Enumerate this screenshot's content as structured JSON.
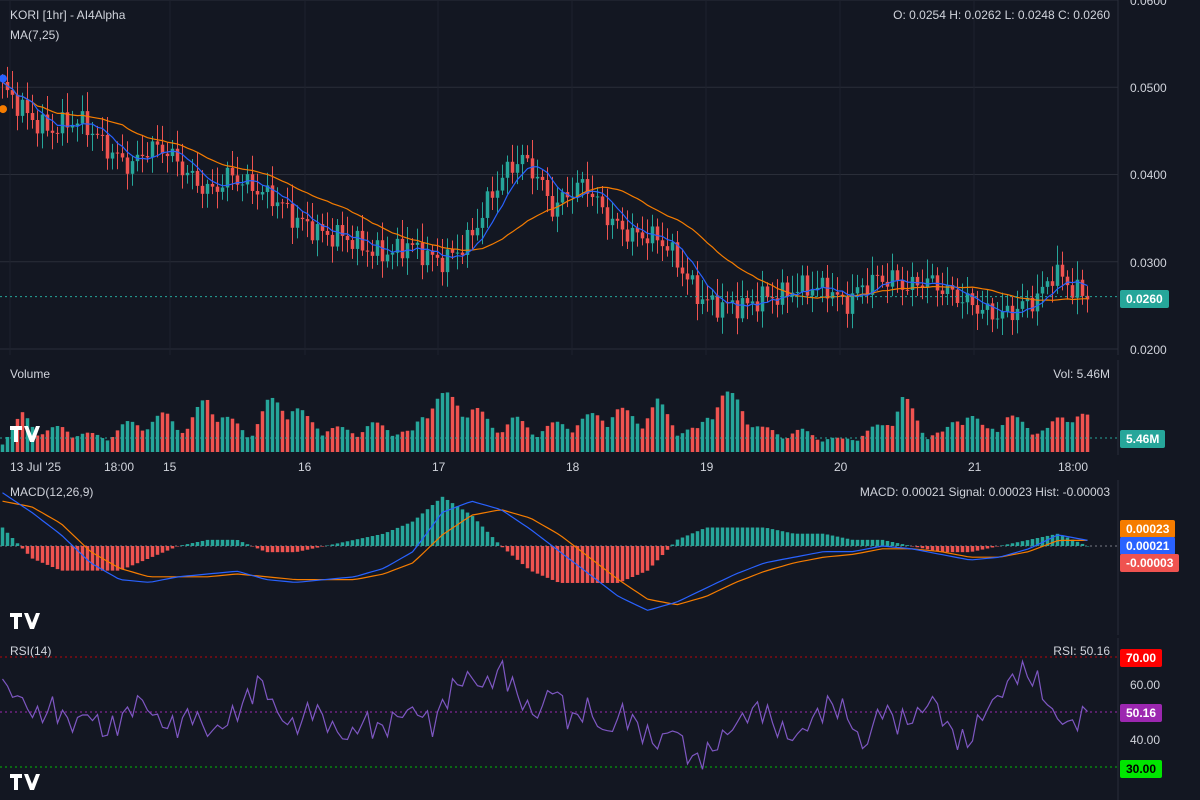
{
  "header": {
    "title": "KORI [1hr] - AI4Alpha",
    "ma_label": "MA(7,25)",
    "ohlc": "O: 0.0254 H: 0.0262 L: 0.0248 C: 0.0260"
  },
  "volume": {
    "label": "Volume",
    "value_label": "Vol: 5.46M",
    "tag": "5.46M"
  },
  "macd": {
    "label": "MACD(12,26,9)",
    "values_label": "MACD: 0.00021 Signal: 0.00023 Hist: -0.00003",
    "tags": {
      "signal": "0.00023",
      "macd": "0.00021",
      "hist": "-0.00003"
    }
  },
  "rsi": {
    "label": "RSI(14)",
    "value_label": "RSI: 50.16",
    "tags": {
      "upper": "70.00",
      "current": "50.16",
      "lower": "30.00"
    },
    "ticks": [
      "60.00",
      "40.00"
    ]
  },
  "price": {
    "current_tag": "0.0260",
    "ticks": [
      "0.0600",
      "0.0500",
      "0.0400",
      "0.0300",
      "0.0200"
    ]
  },
  "colors": {
    "up": "#26a69a",
    "down": "#ef5350",
    "ma7": "#2962ff",
    "ma25": "#f57c00",
    "rsi": "#7e57c2",
    "background": "#131722"
  },
  "chart_data": [
    {
      "type": "candlestick",
      "title": "KORI [1hr] - AI4Alpha",
      "x_tick_labels": [
        "13 Jul '25",
        "18:00",
        "15",
        "16",
        "17",
        "18",
        "19",
        "20",
        "21",
        "18:00"
      ],
      "ylim": [
        0.02,
        0.06
      ],
      "y_ticks": [
        0.06,
        0.05,
        0.04,
        0.03,
        0.02
      ],
      "last_close": 0.026,
      "close_path": [
        0.05,
        0.048,
        0.046,
        0.045,
        0.046,
        0.046,
        0.044,
        0.042,
        0.041,
        0.043,
        0.043,
        0.041,
        0.039,
        0.038,
        0.04,
        0.039,
        0.038,
        0.037,
        0.035,
        0.034,
        0.033,
        0.033,
        0.032,
        0.031,
        0.031,
        0.032,
        0.031,
        0.03,
        0.031,
        0.033,
        0.037,
        0.04,
        0.042,
        0.04,
        0.036,
        0.038,
        0.039,
        0.036,
        0.034,
        0.033,
        0.033,
        0.032,
        0.029,
        0.026,
        0.025,
        0.025,
        0.025,
        0.026,
        0.026,
        0.027,
        0.027,
        0.027,
        0.025,
        0.027,
        0.028,
        0.028,
        0.027,
        0.028,
        0.027,
        0.026,
        0.025,
        0.024,
        0.024,
        0.025,
        0.026,
        0.029,
        0.027,
        0.026
      ],
      "series": [
        {
          "name": "MA7",
          "color": "#2962ff"
        },
        {
          "name": "MA25",
          "color": "#f57c00"
        }
      ]
    },
    {
      "type": "bar",
      "title": "Volume",
      "last_value": "5.46M",
      "relative_values": [
        0.2,
        0.6,
        0.35,
        0.4,
        0.3,
        0.25,
        0.45,
        0.5,
        0.6,
        0.4,
        0.9,
        0.55,
        0.3,
        0.8,
        0.85,
        0.5,
        0.4,
        0.35,
        0.45,
        0.4,
        0.3,
        0.95,
        0.85,
        0.75,
        0.4,
        0.55,
        0.35,
        0.45,
        0.5,
        0.6,
        0.7,
        0.55,
        0.8,
        0.4,
        0.35,
        1.0,
        0.8,
        0.4,
        0.3,
        0.35,
        0.25,
        0.2,
        0.3,
        0.45,
        0.9,
        0.35,
        0.3,
        0.75,
        0.35,
        0.6,
        0.45,
        0.35,
        0.7,
        0.55
      ]
    },
    {
      "type": "line",
      "title": "MACD(12,26,9)",
      "macd": 0.00021,
      "signal": 0.00023,
      "hist": -3e-05,
      "macd_path": [
        0.0019,
        0.0012,
        0.0004,
        -0.0006,
        -0.0012,
        -0.0013,
        -0.0011,
        -0.001,
        -0.0009,
        -0.0012,
        -0.0013,
        -0.0012,
        -0.0011,
        -0.0008,
        -0.0002,
        0.0012,
        0.0016,
        0.0013,
        0.0006,
        -0.0002,
        -0.001,
        -0.0018,
        -0.0023,
        -0.002,
        -0.0015,
        -0.001,
        -0.0006,
        -0.0004,
        -0.0002,
        -0.0002,
        0.0,
        -0.0001,
        -0.0003,
        -0.0005,
        -0.0004,
        -0.0001,
        0.0004,
        0.0002
      ],
      "signal_path": [
        0.0016,
        0.0014,
        0.0008,
        -0.0002,
        -0.0008,
        -0.0011,
        -0.0011,
        -0.0011,
        -0.001,
        -0.0011,
        -0.0012,
        -0.0012,
        -0.0012,
        -0.001,
        -0.0006,
        0.0004,
        0.0011,
        0.0013,
        0.001,
        0.0004,
        -0.0004,
        -0.0012,
        -0.0019,
        -0.0021,
        -0.0018,
        -0.0013,
        -0.0009,
        -0.0006,
        -0.0004,
        -0.0003,
        -0.0001,
        -0.0001,
        -0.0002,
        -0.0004,
        -0.0004,
        -0.0002,
        0.0002,
        0.0002
      ]
    },
    {
      "type": "line",
      "title": "RSI(14)",
      "ylim": [
        20,
        80
      ],
      "levels": [
        70,
        50,
        30
      ],
      "last_value": 50.16,
      "path": [
        60,
        55,
        48,
        52,
        45,
        50,
        42,
        48,
        55,
        47,
        44,
        50,
        42,
        46,
        53,
        62,
        49,
        44,
        52,
        45,
        40,
        47,
        43,
        49,
        51,
        45,
        58,
        63,
        59,
        66,
        55,
        48,
        60,
        46,
        52,
        41,
        50,
        44,
        38,
        45,
        32,
        35,
        42,
        48,
        52,
        44,
        40,
        47,
        53,
        50,
        36,
        52,
        46,
        48,
        55,
        43,
        38,
        50,
        57,
        65,
        62,
        49,
        45,
        50
      ]
    }
  ]
}
